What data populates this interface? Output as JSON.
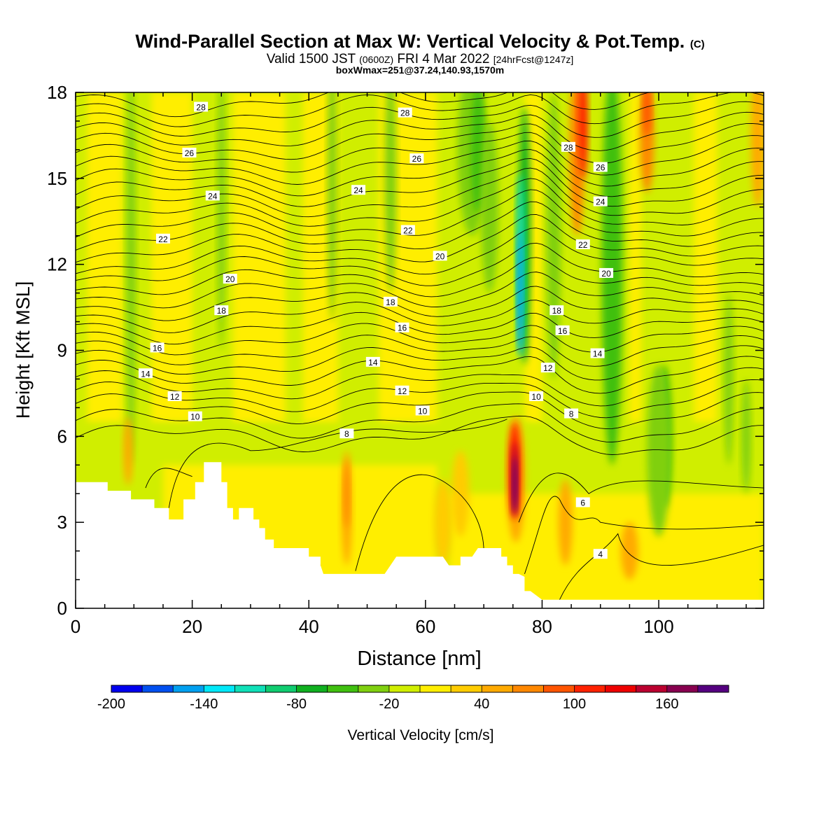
{
  "title": {
    "main": "Wind-Parallel Section at Max W: Vertical Velocity & Pot.Temp.",
    "copyright": "(C)",
    "valid_prefix": "Valid 1500 JST",
    "valid_utc": "(0600Z)",
    "valid_date": "FRI 4 Mar 2022",
    "forecast": "[24hrFcst@1247z]",
    "boxmax": "boxWmax=251@37.24,140.93,1570m"
  },
  "chart_data": {
    "type": "heatmap",
    "xlabel": "Distance [nm]",
    "ylabel": "Height [Kft MSL]",
    "xlim": [
      0,
      118
    ],
    "ylim": [
      0,
      18
    ],
    "x_ticks": [
      "0",
      "20",
      "40",
      "60",
      "80",
      "100"
    ],
    "y_ticks": [
      "0",
      "3",
      "6",
      "9",
      "12",
      "15",
      "18"
    ],
    "colorbar": {
      "label": "Vertical Velocity [cm/s]",
      "tick_labels": [
        "-200",
        "-140",
        "-80",
        "-20",
        "40",
        "100",
        "160"
      ],
      "levels": [
        -200,
        -180,
        -160,
        -140,
        -120,
        -100,
        -80,
        -60,
        -40,
        -20,
        0,
        20,
        40,
        60,
        80,
        100,
        120,
        140,
        160,
        180,
        200
      ],
      "colors": [
        "#0000ee",
        "#0050f0",
        "#00a0f0",
        "#00e8f8",
        "#10e0b8",
        "#10cc70",
        "#10b020",
        "#40c010",
        "#80d010",
        "#d0ee00",
        "#ffee00",
        "#ffcc00",
        "#ffaa00",
        "#ff8800",
        "#ff5500",
        "#ff2200",
        "#ee0000",
        "#bb0030",
        "#880050",
        "#550080"
      ]
    },
    "updrafts_cm_s": [
      {
        "x_nm": 75.5,
        "height_kft": 4.5,
        "max": 180
      },
      {
        "x_nm": 87.0,
        "height_kft": 17.0,
        "max": 100
      },
      {
        "x_nm": 98.0,
        "height_kft": 17.0,
        "max": 80
      },
      {
        "x_nm": 46.5,
        "height_kft": 3.5,
        "max": 60
      },
      {
        "x_nm": 9.0,
        "height_kft": 5.5,
        "max": 40
      }
    ],
    "downdrafts_cm_s": [
      {
        "x_nm": 76.5,
        "height_kft": 11.0,
        "min": -160
      },
      {
        "x_nm": 92.0,
        "height_kft": 12.0,
        "min": -80
      },
      {
        "x_nm": 101.0,
        "height_kft": 6.0,
        "min": -80
      },
      {
        "x_nm": 69.0,
        "height_kft": 16.0,
        "min": -60
      }
    ],
    "theta_contour_labels": [
      {
        "label": "28",
        "x": 21.5,
        "y": 17.5
      },
      {
        "label": "28",
        "x": 56.5,
        "y": 17.3
      },
      {
        "label": "28",
        "x": 84.5,
        "y": 16.1
      },
      {
        "label": "26",
        "x": 19.5,
        "y": 15.9
      },
      {
        "label": "26",
        "x": 58.5,
        "y": 15.7
      },
      {
        "label": "26",
        "x": 90,
        "y": 15.4
      },
      {
        "label": "24",
        "x": 23.5,
        "y": 14.4
      },
      {
        "label": "24",
        "x": 48.5,
        "y": 14.6
      },
      {
        "label": "24",
        "x": 90,
        "y": 14.2
      },
      {
        "label": "22",
        "x": 15,
        "y": 12.9
      },
      {
        "label": "22",
        "x": 57,
        "y": 13.2
      },
      {
        "label": "22",
        "x": 87,
        "y": 12.7
      },
      {
        "label": "20",
        "x": 26.5,
        "y": 11.5
      },
      {
        "label": "20",
        "x": 62.5,
        "y": 12.3
      },
      {
        "label": "20",
        "x": 91,
        "y": 11.7
      },
      {
        "label": "18",
        "x": 25,
        "y": 10.4
      },
      {
        "label": "18",
        "x": 54,
        "y": 10.7
      },
      {
        "label": "18",
        "x": 82.5,
        "y": 10.4
      },
      {
        "label": "16",
        "x": 14,
        "y": 9.1
      },
      {
        "label": "16",
        "x": 56,
        "y": 9.8
      },
      {
        "label": "16",
        "x": 83.5,
        "y": 9.7
      },
      {
        "label": "14",
        "x": 12,
        "y": 8.2
      },
      {
        "label": "14",
        "x": 51,
        "y": 8.6
      },
      {
        "label": "14",
        "x": 89.5,
        "y": 8.9
      },
      {
        "label": "12",
        "x": 17,
        "y": 7.4
      },
      {
        "label": "12",
        "x": 56,
        "y": 7.6
      },
      {
        "label": "12",
        "x": 81,
        "y": 8.4
      },
      {
        "label": "10",
        "x": 20.5,
        "y": 6.7
      },
      {
        "label": "10",
        "x": 59.5,
        "y": 6.9
      },
      {
        "label": "10",
        "x": 79,
        "y": 7.4
      },
      {
        "label": "8",
        "x": 46.5,
        "y": 6.1
      },
      {
        "label": "8",
        "x": 85,
        "y": 6.8
      },
      {
        "label": "6",
        "x": 87,
        "y": 3.7
      },
      {
        "label": "4",
        "x": 90,
        "y": 1.9
      }
    ],
    "terrain_kft": [
      [
        0,
        4.4
      ],
      [
        5.5,
        4.4
      ],
      [
        5.5,
        4.1
      ],
      [
        9.5,
        4.1
      ],
      [
        9.5,
        3.8
      ],
      [
        13.5,
        3.8
      ],
      [
        13.5,
        3.5
      ],
      [
        16,
        3.5
      ],
      [
        16,
        3.1
      ],
      [
        18.5,
        3.1
      ],
      [
        18.5,
        3.8
      ],
      [
        20.5,
        3.8
      ],
      [
        20.5,
        4.4
      ],
      [
        22,
        4.4
      ],
      [
        22,
        5.1
      ],
      [
        25,
        5.1
      ],
      [
        25,
        4.4
      ],
      [
        26,
        4.4
      ],
      [
        26,
        3.5
      ],
      [
        27,
        3.5
      ],
      [
        27,
        3.1
      ],
      [
        28,
        3.1
      ],
      [
        28,
        3.5
      ],
      [
        30.5,
        3.5
      ],
      [
        30.5,
        3.1
      ],
      [
        31.5,
        3.1
      ],
      [
        31.5,
        2.8
      ],
      [
        32.5,
        2.8
      ],
      [
        32.5,
        2.4
      ],
      [
        34,
        2.4
      ],
      [
        34,
        2.1
      ],
      [
        40,
        2.1
      ],
      [
        40,
        1.8
      ],
      [
        42,
        1.8
      ],
      [
        42,
        1.5
      ],
      [
        42.5,
        1.2
      ],
      [
        53,
        1.2
      ],
      [
        55,
        1.8
      ],
      [
        63,
        1.8
      ],
      [
        64,
        1.5
      ],
      [
        66,
        1.5
      ],
      [
        66,
        1.8
      ],
      [
        68,
        1.8
      ],
      [
        69,
        2.1
      ],
      [
        73,
        2.1
      ],
      [
        73,
        1.8
      ],
      [
        74,
        1.8
      ],
      [
        74,
        1.5
      ],
      [
        75,
        1.5
      ],
      [
        75,
        1.2
      ],
      [
        76,
        1.2
      ],
      [
        77,
        1.1
      ],
      [
        77,
        0.6
      ],
      [
        78,
        0.6
      ],
      [
        80,
        0.3
      ],
      [
        118,
        0.3
      ]
    ]
  }
}
